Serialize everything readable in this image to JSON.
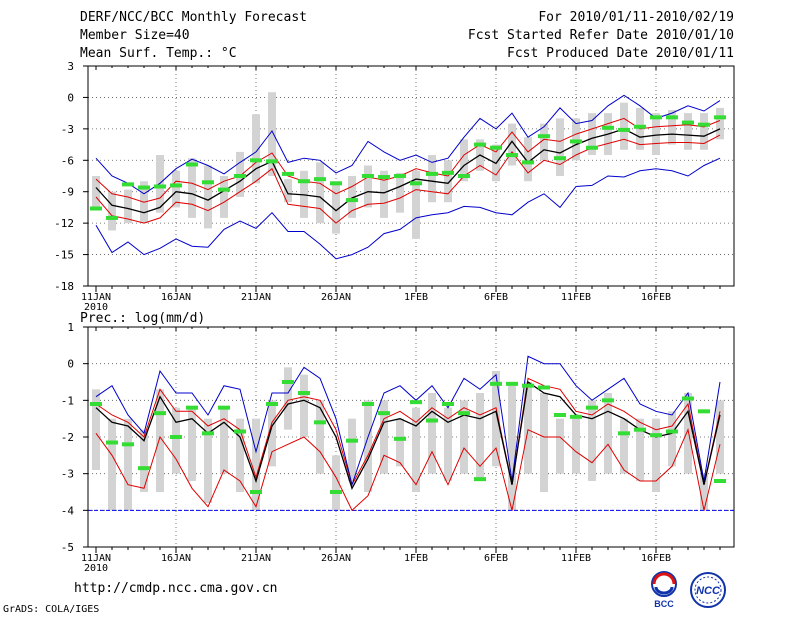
{
  "header": {
    "left": [
      "DERF/NCC/BCC Monthly Forecast",
      "Member Size=40",
      "Mean Surf. Temp.: °C"
    ],
    "right": [
      "For 2010/01/11-2010/02/19",
      "Fcst Started Refer Date 2010/01/10",
      "Fcst Produced Date 2010/01/11"
    ]
  },
  "footer": {
    "url": "http://cmdp.ncc.cma.gov.cn",
    "credit": "GrADS: COLA/IGES"
  },
  "logos": {
    "bcc": "BCC",
    "ncc": "NCC"
  },
  "colors": {
    "max_min": "#0000cc",
    "quantile": "#e00000",
    "mean": "#000000",
    "box": "#d3d3d3",
    "marker": "#33dd33",
    "zero_line": "#0000ff"
  },
  "chart_data": [
    {
      "type": "box-line",
      "title": "Mean Surf. Temp.: °C",
      "x_tick_labels": [
        "11JAN",
        "16JAN",
        "21JAN",
        "26JAN",
        "1FEB",
        "6FEB",
        "11FEB",
        "16FEB"
      ],
      "x_sub_label": "2010",
      "ylim": [
        -18,
        3
      ],
      "yticks": [
        -18,
        -15,
        -12,
        -9,
        -6,
        -3,
        0,
        3
      ],
      "grid": true,
      "days": 40,
      "series": [
        {
          "name": "max",
          "values": [
            -5.8,
            -7.5,
            -8.2,
            -9.2,
            -8.2,
            -6.8,
            -5.9,
            -6.5,
            -7.3,
            -6.2,
            -5.2,
            -3.2,
            -6.2,
            -5.8,
            -6.0,
            -7.2,
            -6.5,
            -4.2,
            -5.2,
            -6.0,
            -5.5,
            -6.2,
            -5.8,
            -3.8,
            -2.0,
            -3.0,
            -1.5,
            -3.8,
            -2.8,
            -1.0,
            -2.5,
            -2.2,
            -0.8,
            0.2,
            -0.8,
            -2.0,
            -1.5,
            -0.8,
            -1.3,
            -0.3
          ]
        },
        {
          "name": "upper",
          "values": [
            -7.8,
            -9.2,
            -9.5,
            -10.0,
            -9.6,
            -8.0,
            -8.2,
            -8.8,
            -8.0,
            -7.5,
            -6.2,
            -5.3,
            -7.5,
            -8.0,
            -8.2,
            -9.2,
            -8.5,
            -7.6,
            -7.9,
            -7.5,
            -6.8,
            -7.2,
            -7.5,
            -5.5,
            -4.5,
            -5.2,
            -3.3,
            -5.2,
            -4.0,
            -4.2,
            -3.5,
            -3.0,
            -2.5,
            -2.0,
            -3.0,
            -2.8,
            -2.7,
            -2.6,
            -2.8,
            -2.2
          ]
        },
        {
          "name": "mean",
          "values": [
            -8.6,
            -10.3,
            -10.6,
            -11.0,
            -10.5,
            -9.0,
            -9.2,
            -9.8,
            -8.9,
            -8.0,
            -6.8,
            -6.1,
            -9.2,
            -9.3,
            -9.5,
            -10.8,
            -9.6,
            -9.0,
            -9.1,
            -8.5,
            -7.8,
            -8.0,
            -8.2,
            -6.5,
            -5.5,
            -6.3,
            -4.2,
            -6.2,
            -5.0,
            -5.3,
            -4.5,
            -3.9,
            -3.5,
            -3.0,
            -3.8,
            -3.6,
            -3.5,
            -3.6,
            -3.7,
            -3.0
          ]
        },
        {
          "name": "lower",
          "values": [
            -9.5,
            -11.3,
            -11.6,
            -12.0,
            -11.5,
            -10.0,
            -10.2,
            -10.8,
            -10.0,
            -9.0,
            -8.0,
            -6.8,
            -10.2,
            -10.4,
            -10.6,
            -12.0,
            -10.8,
            -10.2,
            -10.1,
            -9.6,
            -8.8,
            -9.0,
            -9.2,
            -7.5,
            -6.5,
            -7.4,
            -5.2,
            -7.2,
            -6.0,
            -6.4,
            -5.5,
            -4.8,
            -4.4,
            -4.0,
            -4.5,
            -4.4,
            -4.3,
            -4.3,
            -4.4,
            -3.6
          ]
        },
        {
          "name": "min",
          "values": [
            -12.2,
            -14.8,
            -13.8,
            -15.0,
            -14.4,
            -13.5,
            -14.2,
            -14.3,
            -12.6,
            -11.8,
            -12.5,
            -11.0,
            -12.8,
            -12.8,
            -14.0,
            -15.4,
            -15.0,
            -14.3,
            -13.0,
            -12.6,
            -11.5,
            -11.2,
            -11.0,
            -10.4,
            -10.5,
            -11.0,
            -11.2,
            -10.0,
            -9.2,
            -10.5,
            -8.5,
            -8.4,
            -7.5,
            -7.6,
            -7.0,
            -6.8,
            -7.0,
            -7.5,
            -6.5,
            -5.8
          ]
        },
        {
          "name": "observed",
          "values": [
            -10.6,
            -11.5,
            -8.3,
            -8.6,
            -8.5,
            -8.4,
            -6.4,
            -8.1,
            -8.8,
            -7.5,
            -6.0,
            -6.1,
            -7.3,
            -8.0,
            -7.8,
            -8.2,
            -9.8,
            -7.5,
            -7.6,
            -7.5,
            -8.2,
            -7.3,
            -7.2,
            -7.5,
            -4.5,
            -4.8,
            -5.5,
            -6.2,
            -3.7,
            -5.8,
            -4.2,
            -4.8,
            -2.9,
            -3.1,
            -2.8,
            -1.9,
            -1.9,
            -2.4,
            -2.6,
            -1.9
          ]
        },
        {
          "name": "box_top",
          "values": [
            -7.5,
            -9.0,
            -8.8,
            -8.0,
            -5.5,
            -7.0,
            -5.8,
            -6.5,
            -7.5,
            -5.2,
            -1.6,
            0.5,
            -7.8,
            -7.0,
            -6.2,
            -8.0,
            -7.5,
            -6.5,
            -7.0,
            -7.2,
            -7.0,
            -5.5,
            -6.0,
            -4.0,
            -4.0,
            -4.5,
            -2.5,
            -3.8,
            -2.5,
            -2.0,
            -2.0,
            -1.5,
            -1.5,
            -0.5,
            -1.0,
            -1.5,
            -1.2,
            -1.5,
            -1.5,
            -1.0
          ]
        },
        {
          "name": "box_bottom",
          "values": [
            -10.8,
            -12.7,
            -12.0,
            -12.0,
            -11.0,
            -10.5,
            -11.5,
            -12.5,
            -11.5,
            -9.5,
            -8.2,
            -7.5,
            -10.0,
            -11.5,
            -12.0,
            -13.0,
            -11.5,
            -10.5,
            -11.5,
            -11.0,
            -13.5,
            -10.0,
            -10.0,
            -8.0,
            -7.0,
            -8.0,
            -6.5,
            -8.0,
            -6.0,
            -7.5,
            -6.0,
            -5.5,
            -5.5,
            -5.0,
            -5.0,
            -5.5,
            -4.5,
            -5.0,
            -5.0,
            -4.0
          ]
        }
      ]
    },
    {
      "type": "box-line",
      "title": "Prec.: log(mm/d)",
      "x_tick_labels": [
        "11JAN",
        "16JAN",
        "21JAN",
        "26JAN",
        "1FEB",
        "6FEB",
        "11FEB",
        "16FEB"
      ],
      "x_sub_label": "2010",
      "ylim": [
        -5,
        1
      ],
      "yticks": [
        -5,
        -4,
        -3,
        -2,
        -1,
        0,
        1
      ],
      "grid": true,
      "days": 40,
      "baseline": -4,
      "series": [
        {
          "name": "max",
          "values": [
            -0.9,
            -0.6,
            -1.4,
            -1.9,
            -0.2,
            -0.8,
            -0.8,
            -1.4,
            -0.6,
            -0.7,
            -2.4,
            -0.8,
            -0.8,
            -0.1,
            -0.4,
            -1.5,
            -3.3,
            -2.0,
            -0.8,
            -0.6,
            -1.0,
            -0.6,
            -1.2,
            -0.4,
            -0.7,
            -0.3,
            -3.2,
            0.2,
            0.0,
            0.0,
            -0.6,
            -1.0,
            -0.7,
            -0.4,
            -1.1,
            -1.3,
            -1.4,
            -0.8,
            -3.2,
            -0.5
          ]
        },
        {
          "name": "upper",
          "values": [
            -1.1,
            -1.4,
            -1.6,
            -2.0,
            -0.7,
            -1.3,
            -1.3,
            -1.7,
            -1.5,
            -1.8,
            -3.1,
            -1.6,
            -1.0,
            -0.9,
            -1.0,
            -1.8,
            -3.3,
            -2.5,
            -1.5,
            -1.3,
            -1.6,
            -1.2,
            -1.5,
            -1.2,
            -1.4,
            -1.2,
            -3.3,
            -0.4,
            -0.6,
            -0.7,
            -1.3,
            -1.4,
            -1.1,
            -1.3,
            -1.6,
            -1.8,
            -1.7,
            -1.1,
            -3.3,
            -1.3
          ]
        },
        {
          "name": "mean",
          "values": [
            -1.2,
            -1.6,
            -1.7,
            -2.1,
            -0.9,
            -1.6,
            -1.5,
            -1.9,
            -1.6,
            -2.0,
            -3.2,
            -1.7,
            -1.1,
            -1.0,
            -1.2,
            -2.0,
            -3.4,
            -2.6,
            -1.6,
            -1.5,
            -1.7,
            -1.3,
            -1.6,
            -1.4,
            -1.5,
            -1.3,
            -3.3,
            -0.5,
            -0.8,
            -0.9,
            -1.4,
            -1.5,
            -1.3,
            -1.5,
            -1.8,
            -2.0,
            -1.9,
            -1.3,
            -3.3,
            -1.4
          ]
        },
        {
          "name": "lower",
          "values": [
            -1.9,
            -2.5,
            -3.3,
            -3.4,
            -2.0,
            -2.6,
            -3.4,
            -3.9,
            -2.9,
            -3.2,
            -3.9,
            -2.4,
            -2.2,
            -2.0,
            -2.4,
            -3.1,
            -4.0,
            -3.6,
            -2.5,
            -2.7,
            -3.3,
            -2.4,
            -3.3,
            -2.3,
            -2.8,
            -2.3,
            -4.0,
            -1.8,
            -2.0,
            -2.0,
            -2.4,
            -2.7,
            -2.2,
            -2.9,
            -3.2,
            -3.2,
            -2.8,
            -1.8,
            -4.0,
            -2.2
          ]
        },
        {
          "name": "min",
          "values": [
            -4.0,
            -4.0,
            -4.0,
            -4.0,
            -4.0,
            -4.0,
            -4.0,
            -4.0,
            -4.0,
            -4.0,
            -4.0,
            -4.0,
            -4.0,
            -4.0,
            -4.0,
            -4.0,
            -4.0,
            -4.0,
            -4.0,
            -4.0,
            -4.0,
            -4.0,
            -4.0,
            -4.0,
            -4.0,
            -4.0,
            -4.0,
            -4.0,
            -4.0,
            -4.0,
            -4.0,
            -4.0,
            -4.0,
            -4.0,
            -4.0,
            -4.0,
            -4.0,
            -4.0,
            -4.0,
            -4.0
          ]
        },
        {
          "name": "observed",
          "values": [
            -1.1,
            -2.15,
            -2.2,
            -2.85,
            -1.35,
            -2.0,
            -1.2,
            -1.9,
            -1.2,
            -1.85,
            -3.5,
            -1.1,
            -0.5,
            -0.8,
            -1.6,
            -3.5,
            -2.1,
            -1.1,
            -1.35,
            -2.05,
            -1.05,
            -1.55,
            -1.1,
            -1.35,
            -3.15,
            -0.55,
            -0.55,
            -0.6,
            -0.65,
            -1.4,
            -1.45,
            -1.2,
            -1.0,
            -1.9,
            -1.8,
            -1.95,
            -1.85,
            -0.95,
            -1.3,
            -3.2
          ]
        },
        {
          "name": "box_top",
          "values": [
            -0.7,
            -1.5,
            -1.5,
            -1.8,
            -0.7,
            -1.2,
            -1.2,
            -1.5,
            -1.2,
            -1.5,
            -1.5,
            -1.0,
            -0.1,
            -0.3,
            -1.0,
            -2.5,
            -1.5,
            -1.0,
            -1.0,
            -1.5,
            -1.2,
            -0.8,
            -1.2,
            -1.0,
            -0.8,
            -0.2,
            -0.5,
            -0.5,
            -0.8,
            -1.5,
            -1.5,
            -1.0,
            -0.8,
            -1.5,
            -1.5,
            -1.5,
            -1.3,
            -0.8,
            -3.0,
            -1.0
          ]
        },
        {
          "name": "box_bottom",
          "values": [
            -2.9,
            -4.0,
            -4.0,
            -3.5,
            -3.5,
            -3.0,
            -3.2,
            -3.8,
            -3.0,
            -3.5,
            -4.0,
            -2.8,
            -1.8,
            -2.0,
            -3.0,
            -4.0,
            -3.2,
            -3.5,
            -3.0,
            -2.8,
            -3.5,
            -3.0,
            -3.2,
            -3.0,
            -3.2,
            -2.8,
            -4.0,
            -3.0,
            -3.5,
            -3.0,
            -3.0,
            -3.2,
            -3.0,
            -3.0,
            -3.2,
            -3.5,
            -2.8,
            -3.0,
            -4.0,
            -3.0
          ]
        }
      ]
    }
  ]
}
